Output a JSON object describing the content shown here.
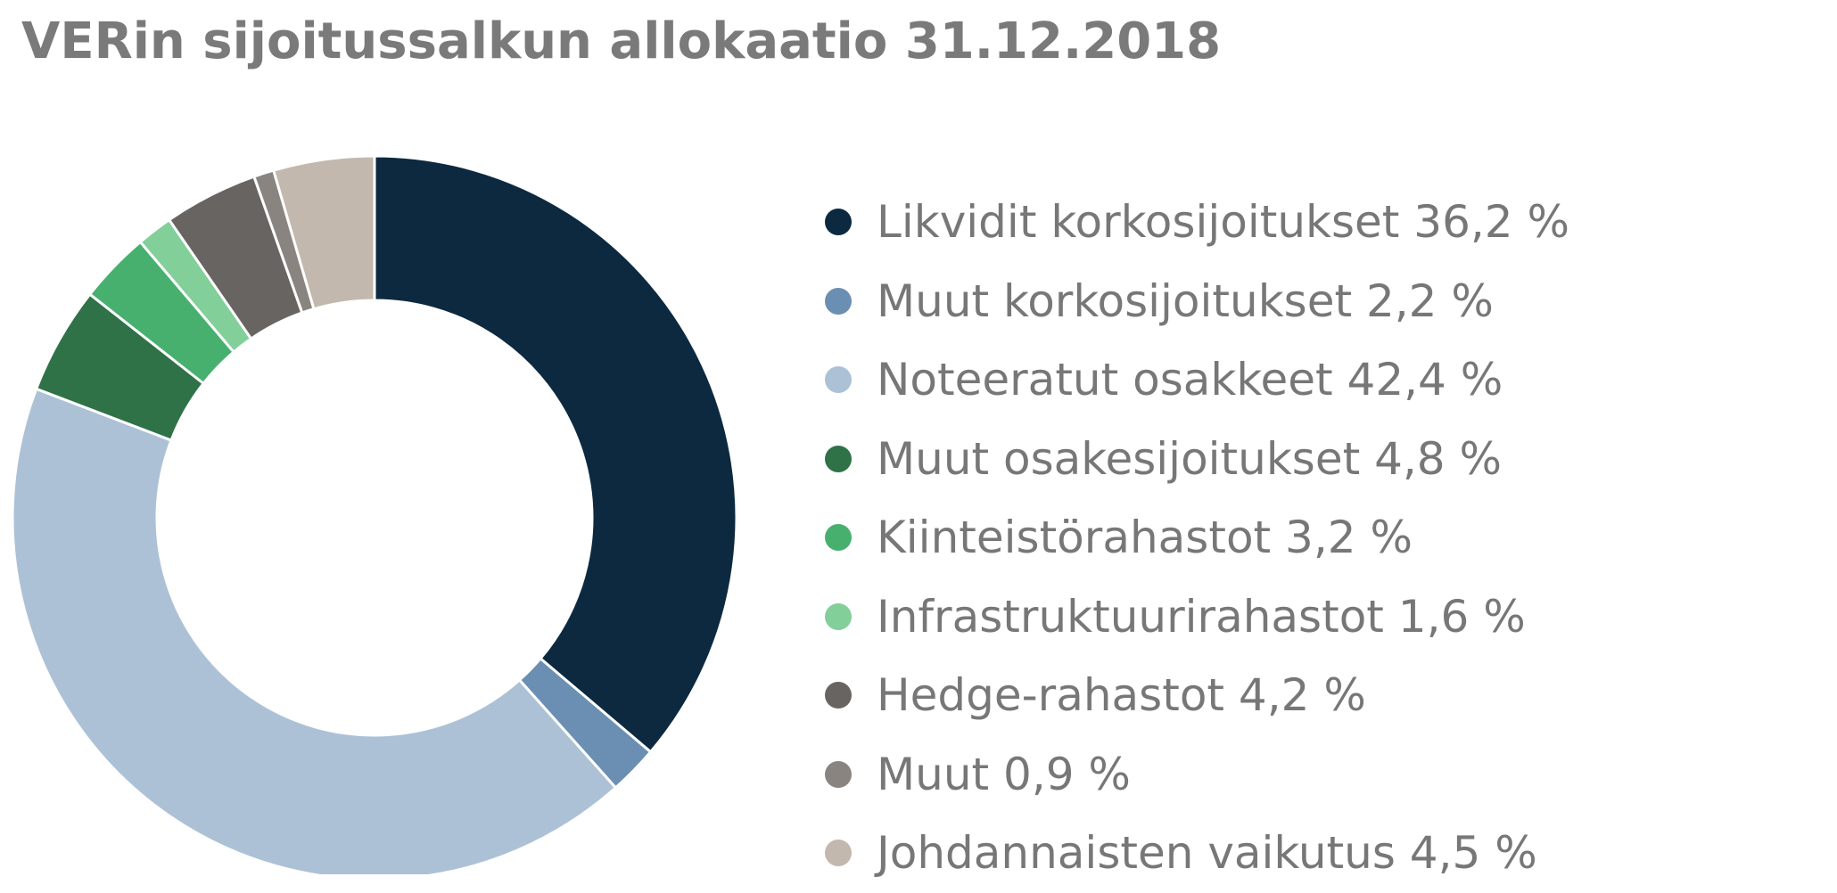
{
  "chart_data": {
    "type": "pie",
    "title": "VERin sijoitussalkun allokaatio 31.12.2018",
    "donut": true,
    "legend_position": "right",
    "slices": [
      {
        "label": "Likvidit korkosijoitukset 36,2 %",
        "value": 36.2,
        "color": "#0c2940"
      },
      {
        "label": "Muut korkosijoitukset 2,2 %",
        "value": 2.2,
        "color": "#6b8fb2"
      },
      {
        "label": "Noteeratut osakkeet 42,4 %",
        "value": 42.4,
        "color": "#adc1d6"
      },
      {
        "label": "Muut osakesijoitukset 4,8 %",
        "value": 4.8,
        "color": "#2f7248"
      },
      {
        "label": "Kiinteistörahastot 3,2 %",
        "value": 3.2,
        "color": "#48b06f"
      },
      {
        "label": "Infrastruktuurirahastot 1,6 %",
        "value": 1.6,
        "color": "#82cf99"
      },
      {
        "label": "Hedge-rahastot 4,2 %",
        "value": 4.2,
        "color": "#686462"
      },
      {
        "label": "Muut 0,9 %",
        "value": 0.9,
        "color": "#8a8480"
      },
      {
        "label": "Johdannaisten vaikutus 4,5 %",
        "value": 4.5,
        "color": "#c2b8ad"
      }
    ]
  }
}
